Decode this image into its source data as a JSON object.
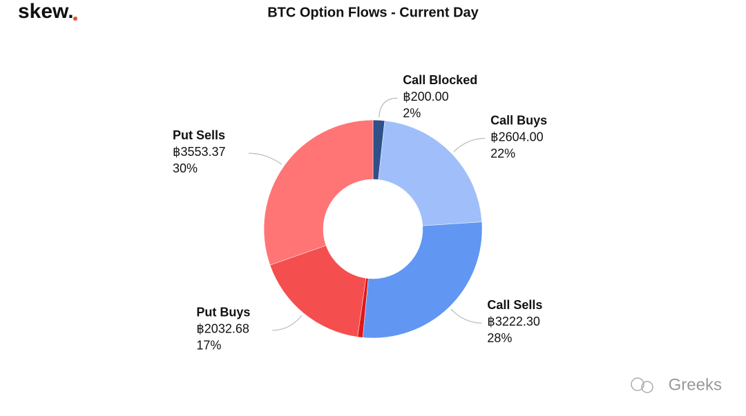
{
  "logo": "skew.",
  "watermark": "Greeks",
  "chart_data": {
    "type": "donut",
    "title": "BTC Option Flows - Current Day",
    "categories": [
      "Call Blocked",
      "Call Buys",
      "Call Sells",
      null,
      "Put Buys",
      "Put Sells"
    ],
    "values": [
      200.0,
      2604.0,
      3222.3,
      90,
      2032.68,
      3553.37
    ],
    "value_labels": [
      "฿200.00",
      "฿2604.00",
      "฿3222.30",
      null,
      "฿2032.68",
      "฿3553.37"
    ],
    "percents": [
      2,
      22,
      28,
      null,
      17,
      30
    ],
    "percent_labels": [
      "2%",
      "22%",
      "28%",
      null,
      "17%",
      "30%"
    ],
    "colors": [
      "#2f5088",
      "#a0bffa",
      "#6196f2",
      "#e01818",
      "#f54e4e",
      "#ff7575"
    ]
  }
}
